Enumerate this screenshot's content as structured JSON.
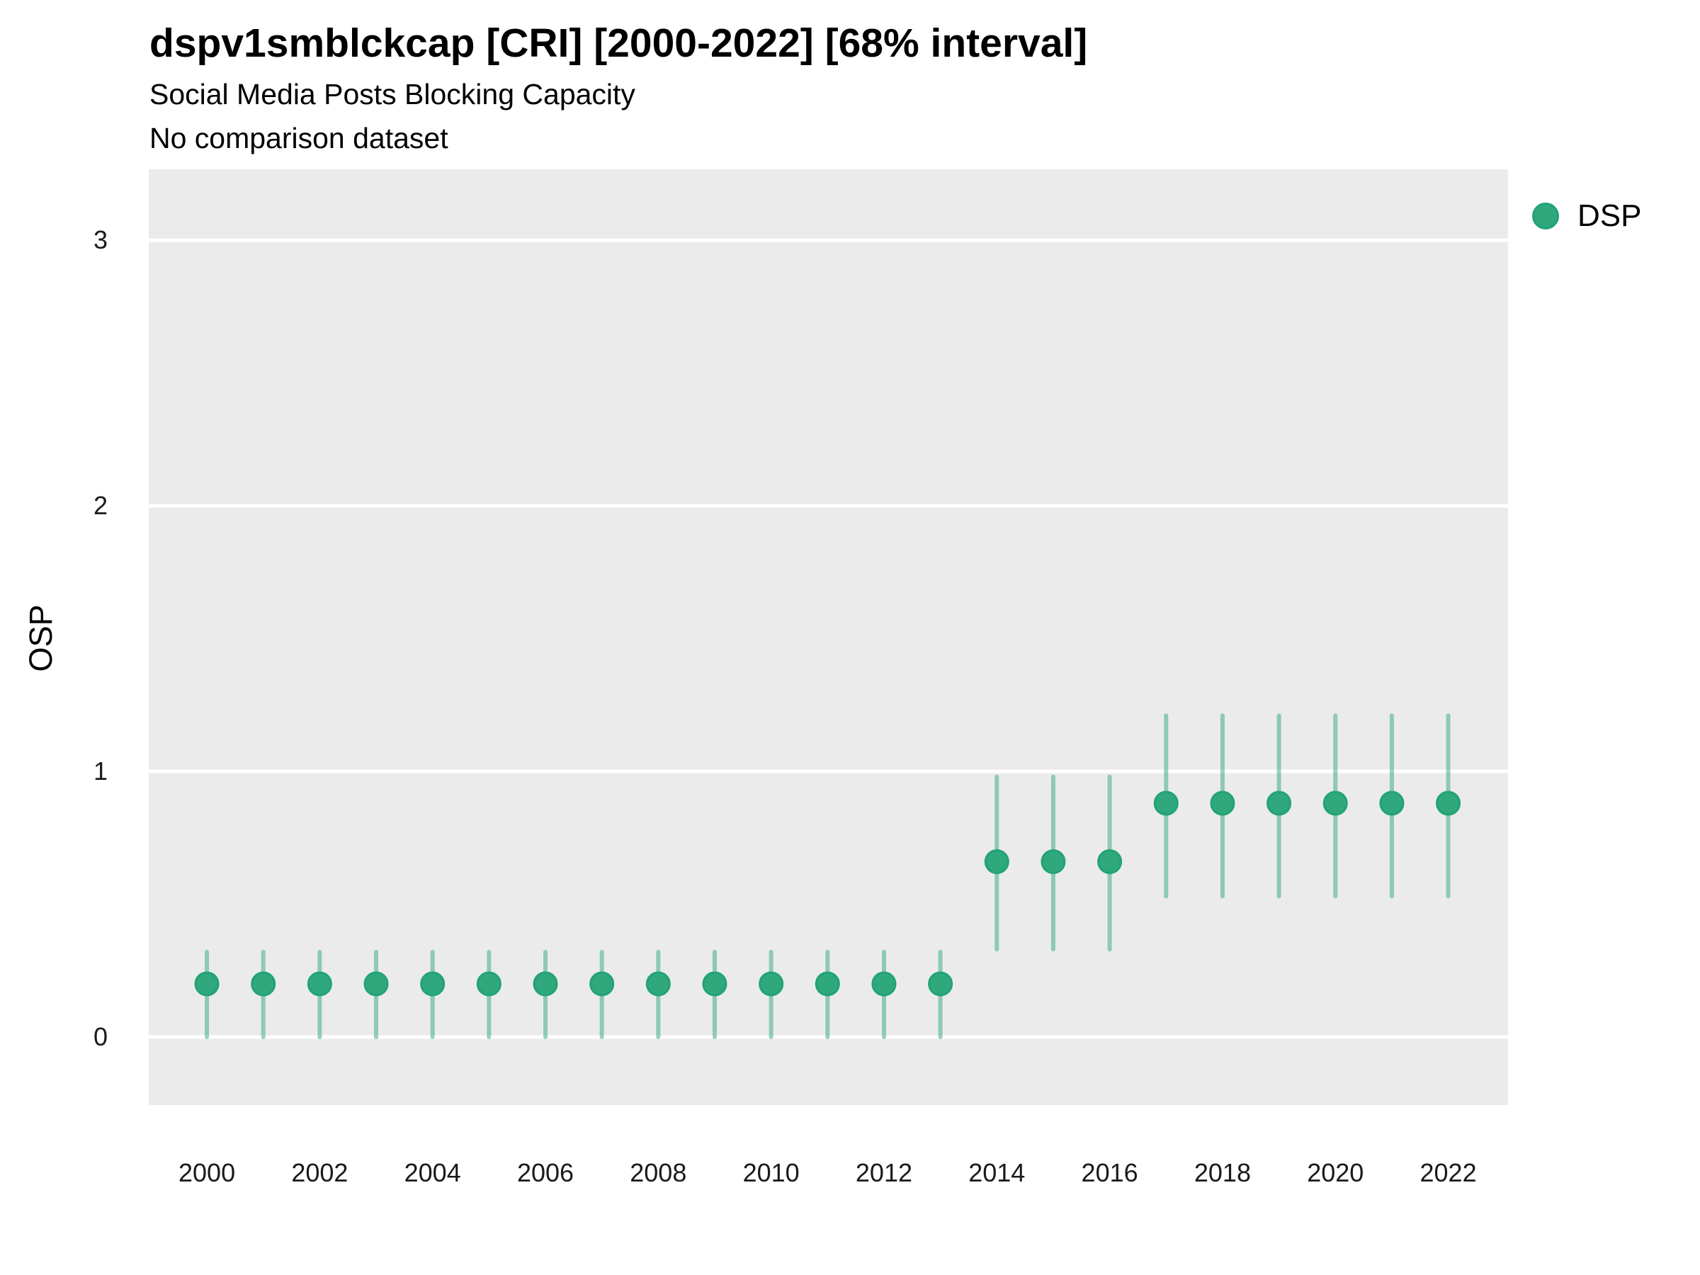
{
  "header": {
    "title": "dspv1smblckcap [CRI] [2000-2022] [68% interval]",
    "subtitle": "Social Media Posts Blocking Capacity",
    "note": "No comparison dataset"
  },
  "legend": {
    "position": "right",
    "items": [
      {
        "label": "DSP",
        "color": "#2FA87D",
        "ring": "#22A374"
      }
    ]
  },
  "colors": {
    "panel_bg": "#EBEBEB",
    "gridline": "#FFFFFF",
    "point_fill": "#2FA87D",
    "point_stroke": "#22A374",
    "interval_stroke": "rgba(47,168,125,0.5)",
    "title_text": "#000000",
    "tick_text": "#1A1A1A"
  },
  "chart_data": {
    "type": "pointrange",
    "title": "dspv1smblckcap [CRI] [2000-2022] [68% interval]",
    "subtitle": "Social Media Posts Blocking Capacity",
    "annotation": "No comparison dataset",
    "xlabel": "",
    "ylabel": "OSP",
    "interval_level": "68%",
    "grid": "major-horizontal-only",
    "legend_position": "right",
    "x": [
      2000,
      2001,
      2002,
      2003,
      2004,
      2005,
      2006,
      2007,
      2008,
      2009,
      2010,
      2011,
      2012,
      2013,
      2014,
      2015,
      2016,
      2017,
      2018,
      2019,
      2020,
      2021,
      2022
    ],
    "series": [
      {
        "name": "DSP",
        "estimate": [
          0.2,
          0.2,
          0.2,
          0.2,
          0.2,
          0.2,
          0.2,
          0.2,
          0.2,
          0.2,
          0.2,
          0.2,
          0.2,
          0.2,
          0.66,
          0.66,
          0.66,
          0.88,
          0.88,
          0.88,
          0.88,
          0.88,
          0.88
        ],
        "lower": [
          0.0,
          0.0,
          0.0,
          0.0,
          0.0,
          0.0,
          0.0,
          0.0,
          0.0,
          0.0,
          0.0,
          0.0,
          0.0,
          0.0,
          0.33,
          0.33,
          0.33,
          0.53,
          0.53,
          0.53,
          0.53,
          0.53,
          0.53
        ],
        "upper": [
          0.32,
          0.32,
          0.32,
          0.32,
          0.32,
          0.32,
          0.32,
          0.32,
          0.32,
          0.32,
          0.32,
          0.32,
          0.32,
          0.32,
          0.98,
          0.98,
          0.98,
          1.21,
          1.21,
          1.21,
          1.21,
          1.21,
          1.21
        ]
      }
    ],
    "yticks": [
      0,
      1,
      2,
      3
    ],
    "xticks": [
      2000,
      2002,
      2004,
      2006,
      2008,
      2010,
      2012,
      2014,
      2016,
      2018,
      2020,
      2022
    ],
    "ylim": [
      -0.256,
      3.267
    ],
    "xlim": [
      1998.97,
      2023.06
    ]
  }
}
